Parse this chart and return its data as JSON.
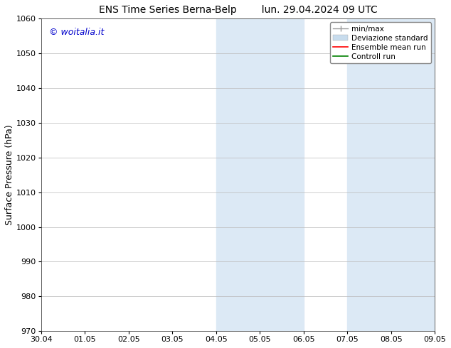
{
  "title_left": "ENS Time Series Berna-Belp",
  "title_right": "lun. 29.04.2024 09 UTC",
  "ylabel": "Surface Pressure (hPa)",
  "ylim": [
    970,
    1060
  ],
  "yticks": [
    970,
    980,
    990,
    1000,
    1010,
    1020,
    1030,
    1040,
    1050,
    1060
  ],
  "xtick_labels": [
    "30.04",
    "01.05",
    "02.05",
    "03.05",
    "04.05",
    "05.05",
    "06.05",
    "07.05",
    "08.05",
    "09.05"
  ],
  "shaded_regions": [
    {
      "xmin": 4,
      "xmax": 6
    },
    {
      "xmin": 7,
      "xmax": 9
    }
  ],
  "shaded_color": "#dce9f5",
  "watermark_text": "© woitalia.it",
  "watermark_color": "#0000cc",
  "legend_labels": [
    "min/max",
    "Deviazione standard",
    "Ensemble mean run",
    "Controll run"
  ],
  "legend_colors": [
    "#999999",
    "#c8dced",
    "red",
    "green"
  ],
  "bg_color": "#ffffff",
  "grid_color": "#bbbbbb",
  "spine_color": "#444444",
  "title_fontsize": 10,
  "tick_fontsize": 8,
  "ylabel_fontsize": 9,
  "watermark_fontsize": 9,
  "legend_fontsize": 7.5
}
